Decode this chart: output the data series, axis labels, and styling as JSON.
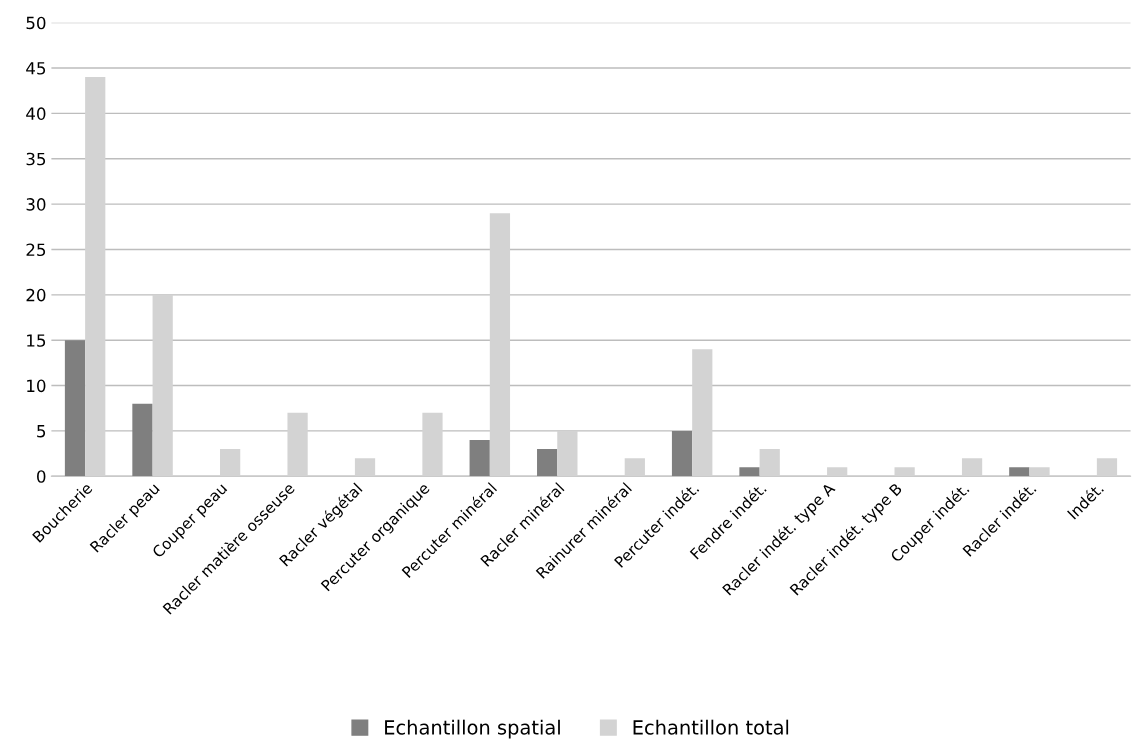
{
  "chart_data": {
    "type": "bar",
    "categories": [
      "Boucherie",
      "Racler peau",
      "Couper peau",
      "Racler matière osseuse",
      "Racler végétal",
      "Percuter organique",
      "Percuter minéral",
      "Racler minéral",
      "Rainurer minéral",
      "Percuter indét.",
      "Fendre indét.",
      "Racler indét. type A",
      "Racler indét. type B",
      "Couper indét.",
      "Racler indét.",
      "Indét."
    ],
    "series": [
      {
        "name": "Echantillon spatial",
        "color": "#7f7f7f",
        "values": [
          15,
          8,
          0,
          0,
          0,
          0,
          4,
          3,
          0,
          5,
          1,
          0,
          0,
          0,
          1,
          0
        ]
      },
      {
        "name": "Echantillon total",
        "color": "#d3d3d3",
        "values": [
          44,
          20,
          3,
          7,
          2,
          7,
          29,
          5,
          2,
          14,
          3,
          1,
          1,
          2,
          1,
          2
        ]
      }
    ],
    "ylim": [
      0,
      50
    ],
    "yticks": [
      0,
      5,
      10,
      15,
      20,
      25,
      30,
      35,
      40,
      45,
      50
    ],
    "grid": "y",
    "legend": "bottom"
  }
}
